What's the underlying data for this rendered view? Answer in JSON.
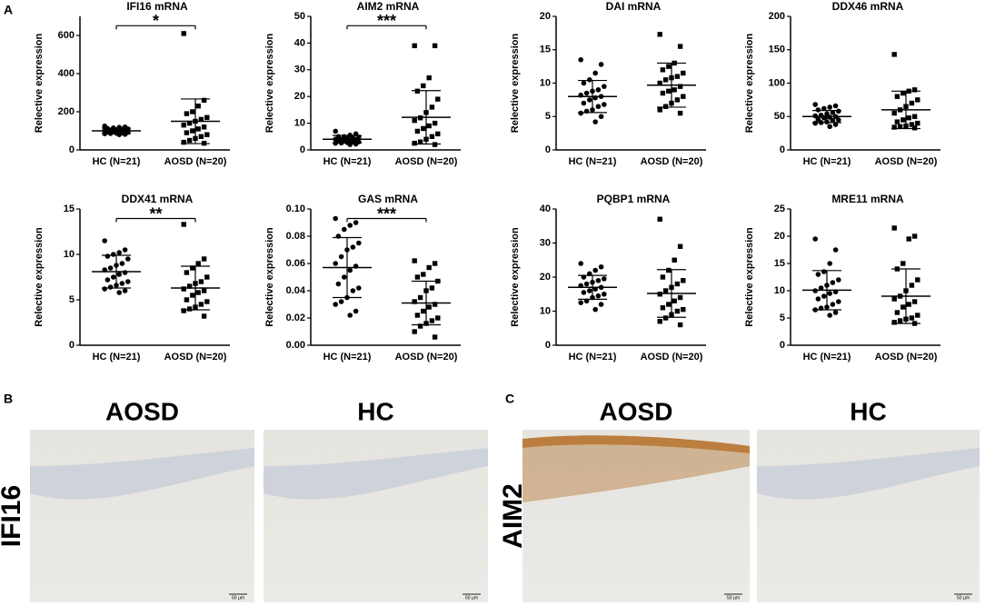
{
  "panel_labels": [
    "A",
    "B",
    "C"
  ],
  "chart_data": [
    {
      "type": "scatter",
      "title": "IFI16 mRNA",
      "ylabel": "Relective expression",
      "categories": [
        "HC (N=21)",
        "AOSD  (N=20)"
      ],
      "ylim": [
        0,
        700
      ],
      "yticks": [
        0,
        200,
        400,
        600
      ],
      "significance": "*",
      "values": [
        [
          125,
          120,
          118,
          115,
          112,
          110,
          108,
          105,
          103,
          100,
          98,
          96,
          95,
          93,
          92,
          90,
          88,
          86,
          85,
          82,
          80
        ],
        [
          610,
          260,
          230,
          200,
          190,
          170,
          160,
          150,
          140,
          130,
          120,
          110,
          100,
          90,
          80,
          70,
          60,
          50,
          40,
          35
        ]
      ],
      "mean": [
        100,
        150
      ],
      "sd": [
        14,
        117
      ]
    },
    {
      "type": "scatter",
      "title": "AIM2 mRNA",
      "ylabel": "Relective expression",
      "categories": [
        "HC (N=21)",
        "AOSD (N=20)"
      ],
      "ylim": [
        0,
        50
      ],
      "yticks": [
        0,
        10,
        20,
        30,
        40,
        50
      ],
      "significance": "***",
      "values": [
        [
          7,
          6,
          5.5,
          5,
          5,
          4.8,
          4.5,
          4.3,
          4,
          4,
          3.8,
          3.6,
          3.5,
          3.3,
          3,
          3,
          2.8,
          2.6,
          2.5,
          2.2,
          2
        ],
        [
          39,
          39,
          27,
          24,
          22,
          19,
          16,
          14,
          12,
          11,
          10,
          9,
          8,
          7,
          6,
          5,
          4,
          3,
          2.5,
          2
        ]
      ],
      "mean": [
        4,
        12.2
      ],
      "sd": [
        1.4,
        10
      ]
    },
    {
      "type": "scatter",
      "title": "DAI mRNA",
      "ylabel": "Relective expression",
      "categories": [
        "HC (N=21)",
        "AOSD (N=20)"
      ],
      "ylim": [
        0,
        20
      ],
      "yticks": [
        0,
        5,
        10,
        15,
        20
      ],
      "values": [
        [
          13.5,
          12.8,
          11.5,
          10.5,
          10,
          9.5,
          9,
          8.8,
          8.5,
          8.2,
          8,
          7.8,
          7.5,
          7,
          6.8,
          6.5,
          6,
          5.8,
          5.5,
          5,
          4.2
        ],
        [
          17.3,
          15.5,
          13,
          12.5,
          12,
          11.5,
          11,
          10.8,
          10.5,
          10,
          9.5,
          9,
          8.8,
          8.5,
          8,
          7.5,
          7,
          6.5,
          6,
          5.5
        ]
      ],
      "mean": [
        8,
        9.7
      ],
      "sd": [
        2.4,
        3.3
      ]
    },
    {
      "type": "scatter",
      "title": "DDX46 mRNA",
      "ylabel": "Relective expression",
      "categories": [
        "HC (N=21)",
        "AOSD (N=20)"
      ],
      "ylim": [
        0,
        200
      ],
      "yticks": [
        0,
        50,
        100,
        150,
        200
      ],
      "values": [
        [
          68,
          66,
          64,
          62,
          60,
          58,
          56,
          54,
          52,
          51,
          50,
          49,
          48,
          46,
          45,
          44,
          42,
          41,
          40,
          38,
          35
        ],
        [
          143,
          90,
          88,
          85,
          80,
          75,
          70,
          65,
          60,
          55,
          50,
          48,
          45,
          42,
          40,
          38,
          36,
          35,
          34,
          33
        ]
      ],
      "mean": [
        50,
        60
      ],
      "sd": [
        9,
        28
      ]
    },
    {
      "type": "scatter",
      "title": "DDX41 mRNA",
      "ylabel": "Relective expression",
      "categories": [
        "HC (N=21)",
        "AOSD (N=20)"
      ],
      "ylim": [
        0,
        15
      ],
      "yticks": [
        0,
        5,
        10,
        15
      ],
      "significance": "**",
      "values": [
        [
          11.5,
          10.5,
          10.2,
          10,
          9.8,
          9.5,
          9,
          8.8,
          8.5,
          8.3,
          8,
          7.8,
          7.5,
          7.2,
          7,
          6.8,
          6.6,
          6.4,
          6.2,
          6,
          5.8
        ],
        [
          13.3,
          9.5,
          9,
          8.5,
          8,
          7.5,
          7,
          6.8,
          6.5,
          6.2,
          6,
          5.8,
          5.5,
          5,
          4.8,
          4.5,
          4.2,
          4,
          3.8,
          3.2
        ]
      ],
      "mean": [
        8.1,
        6.3
      ],
      "sd": [
        1.8,
        2.4
      ]
    },
    {
      "type": "scatter",
      "title": "GAS mRNA",
      "ylabel": "Relective expression",
      "categories": [
        "HC (N=21)",
        "AOSD (N=20)"
      ],
      "ylim": [
        0,
        0.1
      ],
      "yticks": [
        {
          "value": 0,
          "label": "0.00"
        },
        {
          "value": 0.02,
          "label": "0.02"
        },
        {
          "value": 0.04,
          "label": "0.04"
        },
        {
          "value": 0.06,
          "label": "0.06"
        },
        {
          "value": 0.08,
          "label": "0.08"
        },
        {
          "value": 0.1,
          "label": "0.10"
        }
      ],
      "significance": "***",
      "values": [
        [
          0.093,
          0.09,
          0.088,
          0.085,
          0.08,
          0.075,
          0.072,
          0.07,
          0.065,
          0.06,
          0.058,
          0.055,
          0.05,
          0.045,
          0.042,
          0.04,
          0.035,
          0.032,
          0.03,
          0.025,
          0.022
        ],
        [
          0.062,
          0.06,
          0.057,
          0.052,
          0.05,
          0.047,
          0.042,
          0.04,
          0.035,
          0.032,
          0.03,
          0.028,
          0.025,
          0.022,
          0.02,
          0.018,
          0.016,
          0.014,
          0.01,
          0.006
        ]
      ],
      "mean": [
        0.057,
        0.031
      ],
      "sd": [
        0.022,
        0.016
      ]
    },
    {
      "type": "scatter",
      "title": "PQBP1 mRNA",
      "ylabel": "Relective expression",
      "categories": [
        "HC (N=21)",
        "AOSD (N=20)"
      ],
      "ylim": [
        0,
        40
      ],
      "yticks": [
        0,
        10,
        20,
        30,
        40
      ],
      "values": [
        [
          24,
          23,
          22,
          21,
          20,
          19.5,
          19,
          18.5,
          18,
          17.5,
          17,
          16.5,
          16,
          15.5,
          15,
          14.5,
          14,
          13,
          12.5,
          12,
          10.5
        ],
        [
          37,
          29,
          25,
          22,
          20,
          19,
          18,
          17,
          16,
          15,
          14,
          13,
          12,
          11,
          10.5,
          10,
          9,
          8,
          7,
          6
        ]
      ],
      "mean": [
        17,
        15.2
      ],
      "sd": [
        3.5,
        7
      ]
    },
    {
      "type": "scatter",
      "title": "MRE11 mRNA",
      "ylabel": "Relective expression",
      "categories": [
        "HC (N=21)",
        "AOSD (N=20)"
      ],
      "ylim": [
        0,
        25
      ],
      "yticks": [
        0,
        5,
        10,
        15,
        20,
        25
      ],
      "values": [
        [
          19.5,
          17.5,
          15,
          13.5,
          13,
          12,
          11.5,
          11,
          10.5,
          10,
          9.8,
          9.5,
          9,
          8.5,
          8,
          7.5,
          7,
          6.8,
          6.5,
          6,
          5.5
        ],
        [
          21.5,
          20,
          19.5,
          15,
          14,
          12,
          11,
          10,
          9,
          8.5,
          8,
          7.5,
          7,
          6,
          5.5,
          5,
          4.8,
          4.5,
          4.2,
          4
        ]
      ],
      "mean": [
        10.1,
        9
      ],
      "sd": [
        3.6,
        5
      ]
    }
  ],
  "histology": [
    {
      "marker": "IFI16",
      "columns": [
        "AOSD",
        "HC"
      ],
      "scale_bar": "50 μm"
    },
    {
      "marker": "AIM2",
      "columns": [
        "AOSD",
        "HC"
      ],
      "scale_bar": "50 μm"
    }
  ]
}
